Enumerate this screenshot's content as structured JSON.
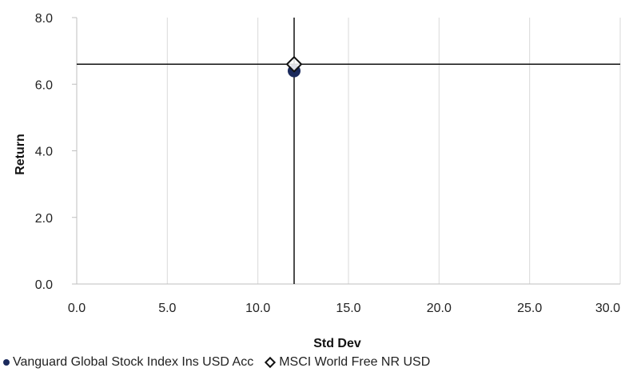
{
  "chart_data": {
    "type": "scatter",
    "xlabel": "Std Dev",
    "ylabel": "Return",
    "xlim": [
      0,
      30
    ],
    "ylim": [
      0,
      8
    ],
    "x_ticks": [
      "0.0",
      "5.0",
      "10.0",
      "15.0",
      "20.0",
      "25.0",
      "30.0"
    ],
    "y_ticks": [
      "0.0",
      "2.0",
      "4.0",
      "6.0",
      "8.0"
    ],
    "grid": "vertical",
    "legend_position": "bottom",
    "series": [
      {
        "name": "Vanguard Global Stock Index Ins USD Acc",
        "marker": "circle",
        "color": "#1b2a5c",
        "x": 12.0,
        "y": 6.4
      },
      {
        "name": "MSCI World Free NR USD",
        "marker": "diamond",
        "color": "#111111",
        "x": 12.0,
        "y": 6.6
      }
    ],
    "reference_lines": {
      "x": 12.0,
      "y": 6.6
    }
  }
}
